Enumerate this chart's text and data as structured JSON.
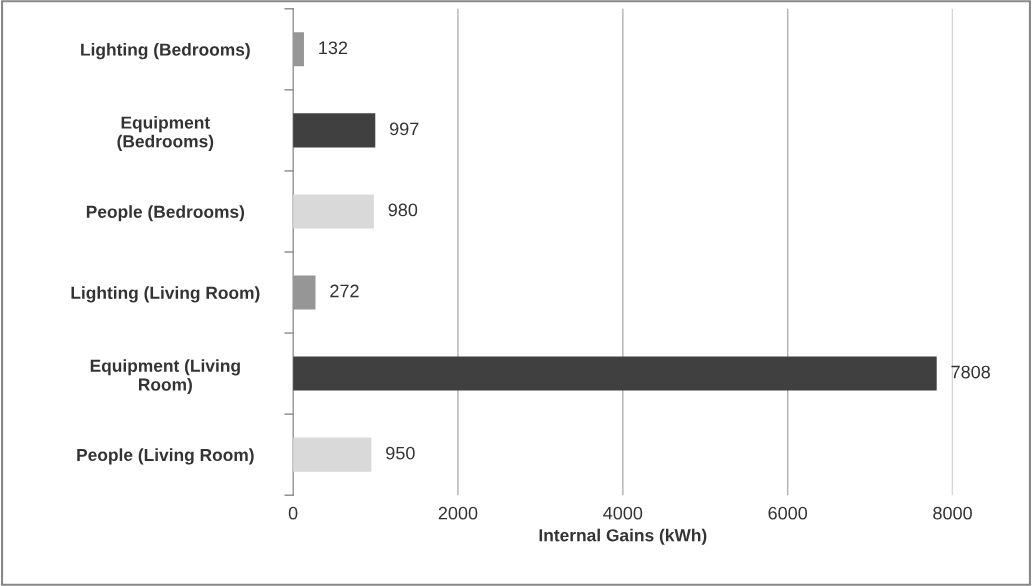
{
  "chart_data": {
    "type": "bar",
    "orientation": "horizontal",
    "categories": [
      "Lighting (Bedrooms)",
      "Equipment\n(Bedrooms)",
      "People (Bedrooms)",
      "Lighting (Living Room)",
      "Equipment (Living\nRoom)",
      "People (Living Room)"
    ],
    "values": [
      132,
      997,
      980,
      272,
      7808,
      950
    ],
    "colors": [
      "#969696",
      "#404040",
      "#d9d9d9",
      "#969696",
      "#404040",
      "#d9d9d9"
    ],
    "xlabel": "Internal Gains (kWh)",
    "xlim": [
      0,
      8000
    ],
    "xticks": [
      0,
      2000,
      4000,
      6000,
      8000
    ],
    "grid": "x",
    "data_labels": true,
    "legend": false
  }
}
